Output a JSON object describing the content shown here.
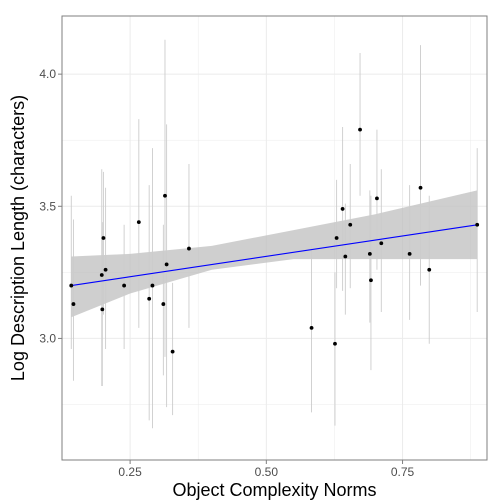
{
  "chart_data": {
    "type": "scatter",
    "title": "",
    "xlabel": "Object Complexity Norms",
    "ylabel": "Log Description Length (characters)",
    "xlim": [
      0.125,
      0.905
    ],
    "ylim": [
      2.54,
      4.22
    ],
    "xticks": [
      0.25,
      0.5,
      0.75
    ],
    "xtick_labels": [
      "0.25",
      "0.50",
      "0.75"
    ],
    "yticks": [
      3.0,
      3.5,
      4.0
    ],
    "ytick_labels": [
      "3.0",
      "3.5",
      "4.0"
    ],
    "grid": true,
    "legend": "none",
    "colors": {
      "panel": "#ffffff",
      "grid": "#ebebeb",
      "border": "#7f7f7f",
      "points": "#000000",
      "errorbars": "#cccccc",
      "fit_line": "#0000ff",
      "ribbon": "#bfbfbf"
    },
    "points": [
      {
        "x": 0.142,
        "y": 3.2,
        "ymin": 2.96,
        "ymax": 3.54
      },
      {
        "x": 0.146,
        "y": 3.13,
        "ymin": 2.84,
        "ymax": 3.45
      },
      {
        "x": 0.198,
        "y": 3.24,
        "ymin": 2.82,
        "ymax": 3.64
      },
      {
        "x": 0.199,
        "y": 3.11,
        "ymin": 2.82,
        "ymax": 3.44
      },
      {
        "x": 0.201,
        "y": 3.38,
        "ymin": 3.09,
        "ymax": 3.63
      },
      {
        "x": 0.205,
        "y": 3.26,
        "ymin": 2.96,
        "ymax": 3.57
      },
      {
        "x": 0.239,
        "y": 3.2,
        "ymin": 2.96,
        "ymax": 3.43
      },
      {
        "x": 0.266,
        "y": 3.44,
        "ymin": 3.04,
        "ymax": 3.83
      },
      {
        "x": 0.285,
        "y": 3.15,
        "ymin": 2.69,
        "ymax": 3.58
      },
      {
        "x": 0.291,
        "y": 3.2,
        "ymin": 2.66,
        "ymax": 3.72
      },
      {
        "x": 0.311,
        "y": 3.13,
        "ymin": 2.86,
        "ymax": 3.43
      },
      {
        "x": 0.314,
        "y": 3.54,
        "ymin": 2.93,
        "ymax": 4.13
      },
      {
        "x": 0.317,
        "y": 3.28,
        "ymin": 2.74,
        "ymax": 3.81
      },
      {
        "x": 0.328,
        "y": 2.95,
        "ymin": 2.71,
        "ymax": 3.21
      },
      {
        "x": 0.358,
        "y": 3.34,
        "ymin": 3.04,
        "ymax": 3.66
      },
      {
        "x": 0.583,
        "y": 3.04,
        "ymin": 2.72,
        "ymax": 3.35
      },
      {
        "x": 0.626,
        "y": 2.98,
        "ymin": 2.67,
        "ymax": 3.25
      },
      {
        "x": 0.629,
        "y": 3.38,
        "ymin": 3.19,
        "ymax": 3.6
      },
      {
        "x": 0.64,
        "y": 3.49,
        "ymin": 3.18,
        "ymax": 3.8
      },
      {
        "x": 0.645,
        "y": 3.31,
        "ymin": 3.09,
        "ymax": 3.51
      },
      {
        "x": 0.654,
        "y": 3.43,
        "ymin": 3.19,
        "ymax": 3.66
      },
      {
        "x": 0.672,
        "y": 3.79,
        "ymin": 3.54,
        "ymax": 4.08
      },
      {
        "x": 0.69,
        "y": 3.32,
        "ymin": 3.06,
        "ymax": 3.56
      },
      {
        "x": 0.692,
        "y": 3.22,
        "ymin": 2.88,
        "ymax": 3.54
      },
      {
        "x": 0.703,
        "y": 3.53,
        "ymin": 3.26,
        "ymax": 3.79
      },
      {
        "x": 0.711,
        "y": 3.36,
        "ymin": 3.1,
        "ymax": 3.64
      },
      {
        "x": 0.763,
        "y": 3.32,
        "ymin": 3.07,
        "ymax": 3.58
      },
      {
        "x": 0.783,
        "y": 3.57,
        "ymin": 3.2,
        "ymax": 4.11
      },
      {
        "x": 0.799,
        "y": 3.26,
        "ymin": 2.98,
        "ymax": 3.54
      },
      {
        "x": 0.887,
        "y": 3.43,
        "ymin": 3.1,
        "ymax": 3.72
      }
    ],
    "fit": {
      "x": [
        0.142,
        0.887
      ],
      "y": [
        3.2,
        3.43
      ]
    },
    "ribbon": {
      "x": [
        0.142,
        0.25,
        0.4,
        0.55,
        0.7,
        0.887
      ],
      "lower": [
        3.08,
        3.17,
        3.26,
        3.3,
        3.3,
        3.3
      ],
      "upper": [
        3.31,
        3.32,
        3.35,
        3.41,
        3.47,
        3.56
      ]
    }
  }
}
